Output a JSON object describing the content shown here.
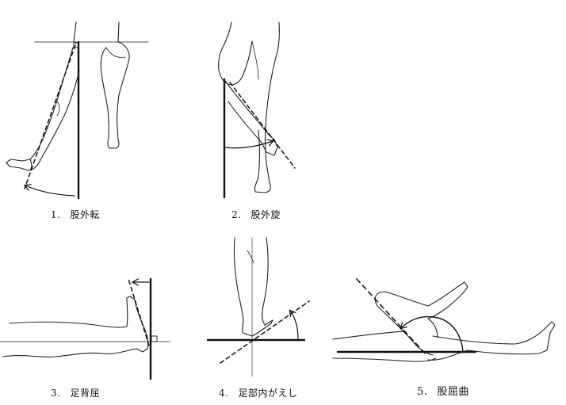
{
  "figures": [
    {
      "id": "fig1",
      "number": "1.",
      "label": "股外転"
    },
    {
      "id": "fig2",
      "number": "2.",
      "label": "股外旋"
    },
    {
      "id": "fig3",
      "number": "3.",
      "label": "足背屈"
    },
    {
      "id": "fig4",
      "number": "4.",
      "label": "足部内がえし"
    },
    {
      "id": "fig5",
      "number": "5.",
      "label": "股屈曲"
    }
  ]
}
